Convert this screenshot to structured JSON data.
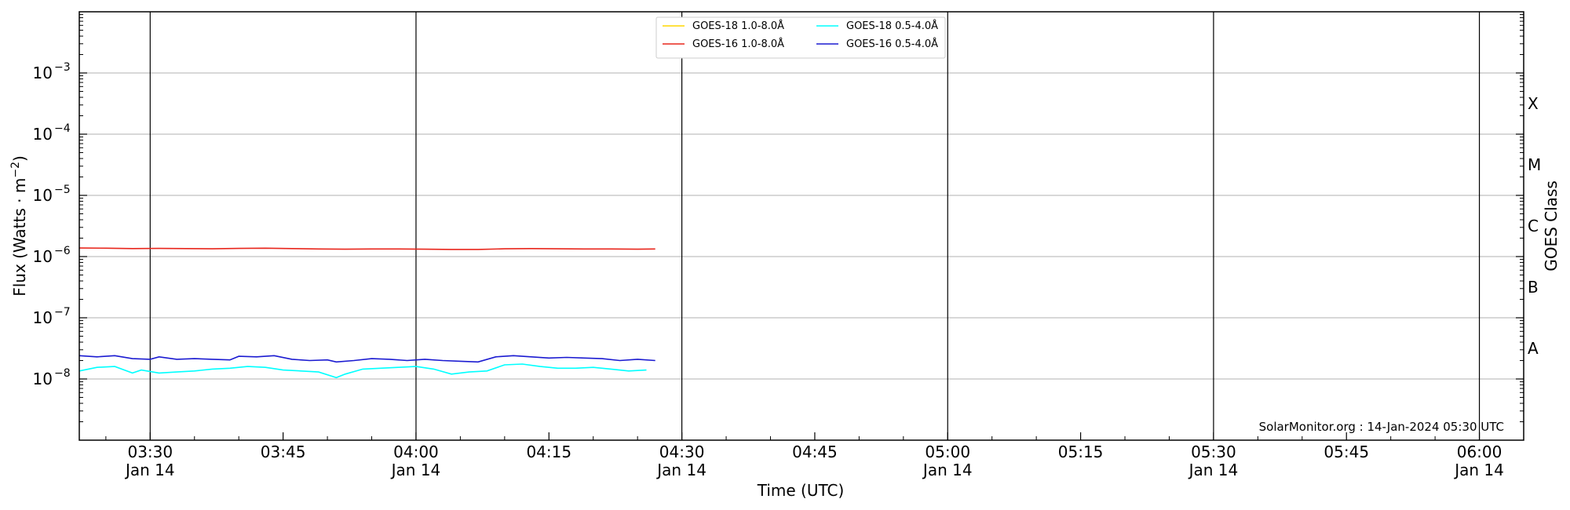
{
  "chart_data": {
    "type": "line",
    "title": "",
    "xlabel": "Time (UTC)",
    "ylabel": "Flux (Watts · m⁻²)",
    "y2label": "GOES Class",
    "yscale": "log",
    "xlim": [
      "03:22",
      "06:05"
    ],
    "ylim": [
      1e-09,
      0.01
    ],
    "grid": "horizontal at decades",
    "legend_position": "top-center",
    "x_ticks": [
      {
        "time": "03:30",
        "label": "03:30",
        "date": "Jan 14"
      },
      {
        "time": "03:45",
        "label": "03:45",
        "date": ""
      },
      {
        "time": "04:00",
        "label": "04:00",
        "date": "Jan 14"
      },
      {
        "time": "04:15",
        "label": "04:15",
        "date": ""
      },
      {
        "time": "04:30",
        "label": "04:30",
        "date": "Jan 14"
      },
      {
        "time": "04:45",
        "label": "04:45",
        "date": ""
      },
      {
        "time": "05:00",
        "label": "05:00",
        "date": "Jan 14"
      },
      {
        "time": "05:15",
        "label": "05:15",
        "date": ""
      },
      {
        "time": "05:30",
        "label": "05:30",
        "date": "Jan 14"
      },
      {
        "time": "05:45",
        "label": "05:45",
        "date": ""
      },
      {
        "time": "06:00",
        "label": "06:00",
        "date": "Jan 14"
      }
    ],
    "vertical_lines": [
      "03:30",
      "04:00",
      "04:30",
      "05:00",
      "05:30",
      "06:00"
    ],
    "y_ticks": [
      {
        "value": 1e-08,
        "label": "10",
        "exp": "−8"
      },
      {
        "value": 1e-07,
        "label": "10",
        "exp": "−7"
      },
      {
        "value": 1e-06,
        "label": "10",
        "exp": "−6"
      },
      {
        "value": 1e-05,
        "label": "10",
        "exp": "−5"
      },
      {
        "value": 0.0001,
        "label": "10",
        "exp": "−4"
      },
      {
        "value": 0.001,
        "label": "10",
        "exp": "−3"
      }
    ],
    "goes_classes": [
      {
        "label": "A",
        "value": 3.16e-08
      },
      {
        "label": "B",
        "value": 3.16e-07
      },
      {
        "label": "C",
        "value": 3.16e-06
      },
      {
        "label": "M",
        "value": 3.16e-05
      },
      {
        "label": "X",
        "value": 0.000316
      }
    ],
    "series": [
      {
        "name": "GOES-18 1.0-8.0Å",
        "color": "#ffd700",
        "x": [],
        "y": []
      },
      {
        "name": "GOES-16 1.0-8.0Å",
        "color": "#e8261c",
        "x": [
          "03:22",
          "03:25",
          "03:28",
          "03:31",
          "03:34",
          "03:37",
          "03:40",
          "03:43",
          "03:46",
          "03:49",
          "03:52",
          "03:55",
          "03:58",
          "04:01",
          "04:04",
          "04:07",
          "04:10",
          "04:13",
          "04:16",
          "04:19",
          "04:22",
          "04:25",
          "04:27"
        ],
        "y": [
          1.38e-06,
          1.37e-06,
          1.35e-06,
          1.36e-06,
          1.35e-06,
          1.34e-06,
          1.36e-06,
          1.37e-06,
          1.35e-06,
          1.33e-06,
          1.32e-06,
          1.33e-06,
          1.33e-06,
          1.32e-06,
          1.31e-06,
          1.31e-06,
          1.34e-06,
          1.35e-06,
          1.34e-06,
          1.33e-06,
          1.33e-06,
          1.32e-06,
          1.33e-06
        ]
      },
      {
        "name": "GOES-18 0.5-4.0Å",
        "color": "#00ffff",
        "x": [
          "03:22",
          "03:24",
          "03:26",
          "03:28",
          "03:29",
          "03:31",
          "03:33",
          "03:35",
          "03:37",
          "03:39",
          "03:41",
          "03:43",
          "03:45",
          "03:47",
          "03:49",
          "03:51",
          "03:52",
          "03:54",
          "03:56",
          "03:58",
          "04:00",
          "04:02",
          "04:04",
          "04:06",
          "04:08",
          "04:10",
          "04:12",
          "04:14",
          "04:16",
          "04:18",
          "04:20",
          "04:22",
          "04:24",
          "04:26"
        ],
        "y": [
          1.35e-08,
          1.55e-08,
          1.6e-08,
          1.25e-08,
          1.4e-08,
          1.25e-08,
          1.3e-08,
          1.35e-08,
          1.45e-08,
          1.5e-08,
          1.6e-08,
          1.55e-08,
          1.4e-08,
          1.35e-08,
          1.3e-08,
          1.05e-08,
          1.2e-08,
          1.45e-08,
          1.5e-08,
          1.55e-08,
          1.6e-08,
          1.45e-08,
          1.2e-08,
          1.3e-08,
          1.35e-08,
          1.7e-08,
          1.75e-08,
          1.6e-08,
          1.5e-08,
          1.5e-08,
          1.55e-08,
          1.45e-08,
          1.35e-08,
          1.4e-08
        ]
      },
      {
        "name": "GOES-16 0.5-4.0Å",
        "color": "#1b1bd1",
        "x": [
          "03:22",
          "03:24",
          "03:26",
          "03:28",
          "03:30",
          "03:31",
          "03:33",
          "03:35",
          "03:37",
          "03:39",
          "03:40",
          "03:42",
          "03:44",
          "03:46",
          "03:48",
          "03:50",
          "03:51",
          "03:53",
          "03:55",
          "03:57",
          "03:59",
          "04:01",
          "04:03",
          "04:05",
          "04:07",
          "04:09",
          "04:11",
          "04:13",
          "04:15",
          "04:17",
          "04:19",
          "04:21",
          "04:23",
          "04:25",
          "04:27"
        ],
        "y": [
          2.4e-08,
          2.3e-08,
          2.4e-08,
          2.15e-08,
          2.1e-08,
          2.3e-08,
          2.1e-08,
          2.15e-08,
          2.1e-08,
          2.05e-08,
          2.35e-08,
          2.3e-08,
          2.4e-08,
          2.1e-08,
          2e-08,
          2.05e-08,
          1.9e-08,
          2e-08,
          2.15e-08,
          2.1e-08,
          2e-08,
          2.1e-08,
          2e-08,
          1.95e-08,
          1.9e-08,
          2.3e-08,
          2.4e-08,
          2.3e-08,
          2.2e-08,
          2.25e-08,
          2.2e-08,
          2.15e-08,
          2e-08,
          2.1e-08,
          2e-08
        ]
      }
    ],
    "annotation": "SolarMonitor.org : 14-Jan-2024 05:30 UTC"
  }
}
